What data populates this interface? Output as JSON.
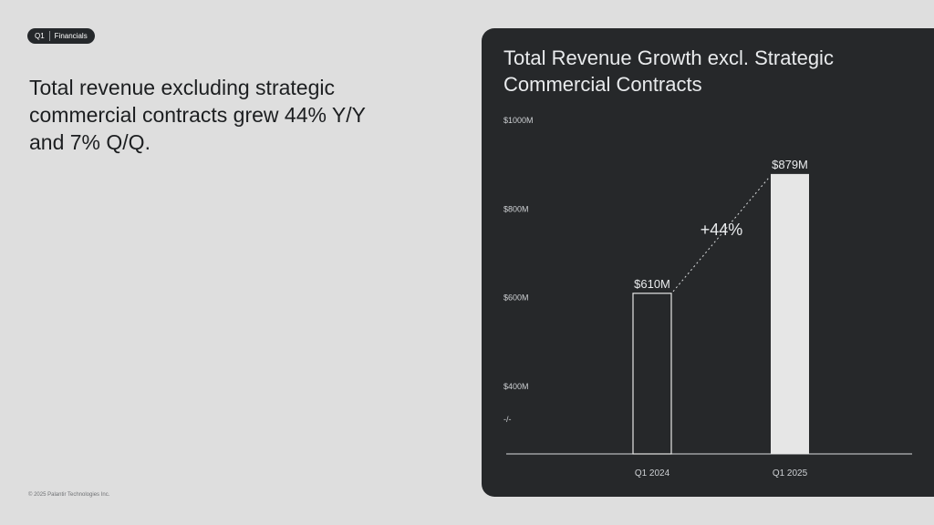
{
  "badge": {
    "quarter": "Q1",
    "section": "Financials"
  },
  "headline": "Total revenue excluding strategic commercial contracts grew 44% Y/Y and 7% Q/Q.",
  "footer": "© 2025 Palantir Technologies Inc.",
  "panel": {
    "title": "Total Revenue Growth excl. Strategic Commercial Contracts"
  },
  "chart_data": {
    "type": "bar",
    "categories": [
      "Q1 2024",
      "Q1 2025"
    ],
    "values": [
      610,
      879
    ],
    "value_labels": [
      "$610M",
      "$879M"
    ],
    "y_ticks": [
      "$1000M",
      "$800M",
      "$600M",
      "$400M"
    ],
    "y_tick_values": [
      1000,
      800,
      600,
      400
    ],
    "ylim": [
      400,
      1000
    ],
    "axis_break_glyph": "-/-",
    "growth_annotation": "+44%",
    "bar_styles": [
      "outline",
      "filled"
    ],
    "colors": {
      "background": "#26282a",
      "bar_fill": "#e6e6e6",
      "bar_outline": "#e6e6e6",
      "text": "#e9ebed"
    }
  }
}
